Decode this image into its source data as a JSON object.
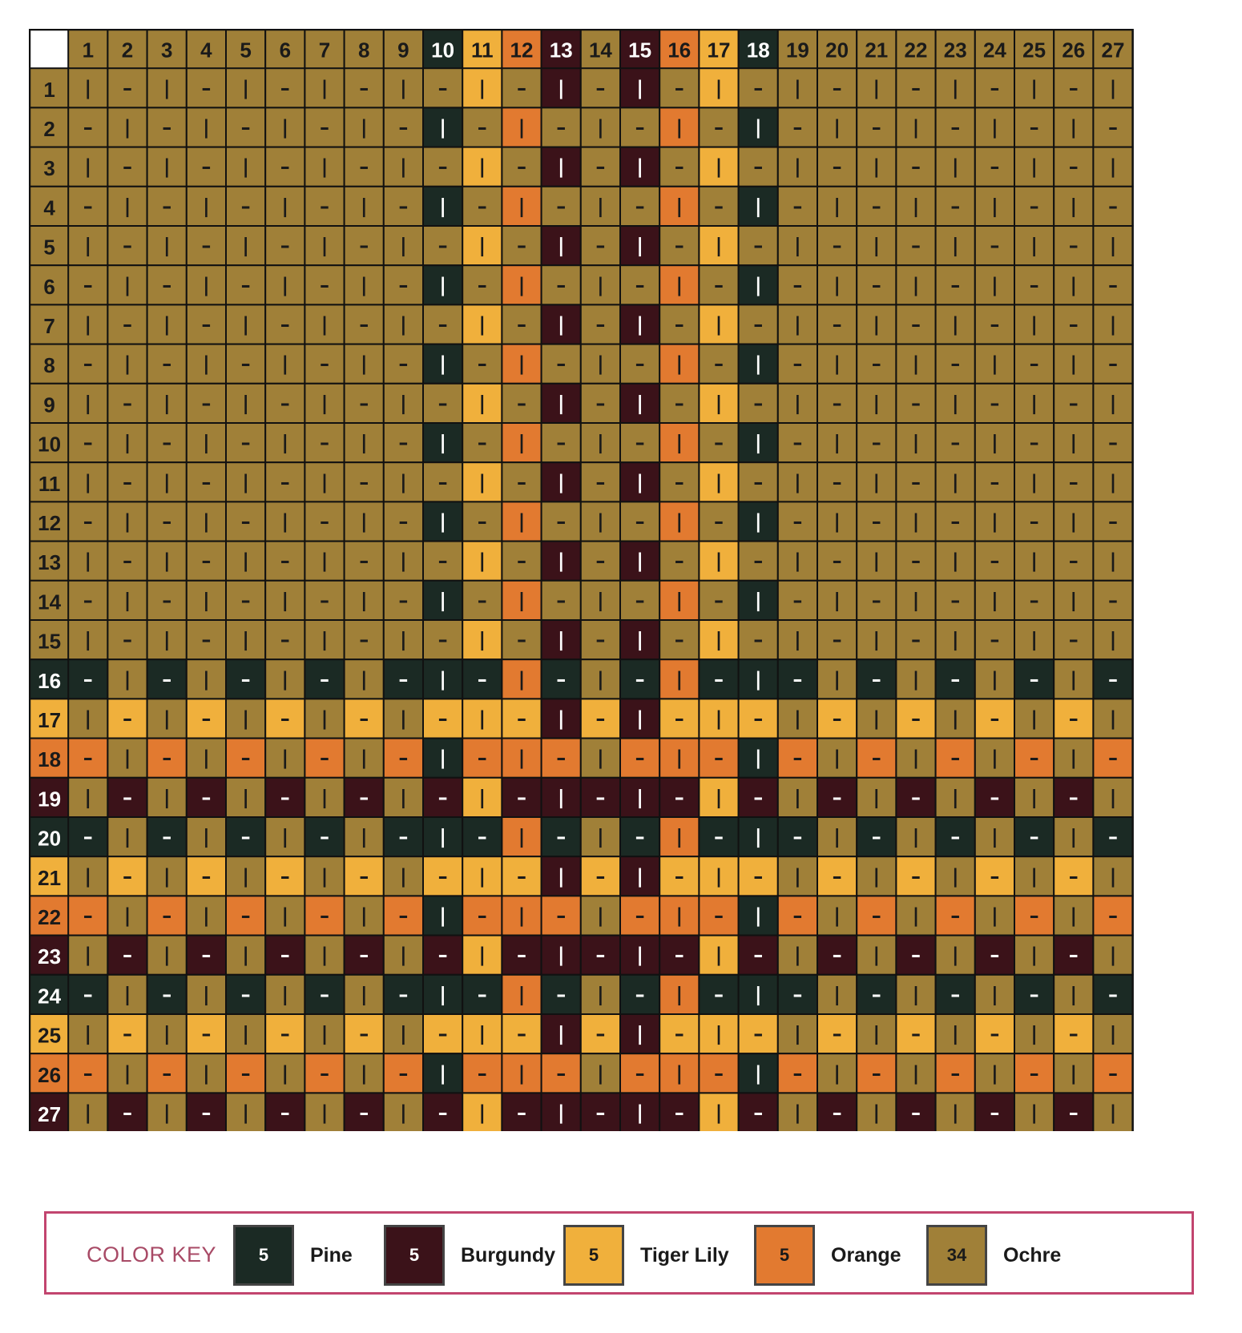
{
  "chart_data": {
    "type": "table",
    "columns": [
      "1",
      "2",
      "3",
      "4",
      "5",
      "6",
      "7",
      "8",
      "9",
      "10",
      "11",
      "12",
      "13",
      "14",
      "15",
      "16",
      "17",
      "18",
      "19",
      "20",
      "21",
      "22",
      "23",
      "24",
      "25",
      "26",
      "27"
    ],
    "rows": [
      "1",
      "2",
      "3",
      "4",
      "5",
      "6",
      "7",
      "8",
      "9",
      "10",
      "11",
      "12",
      "13",
      "14",
      "15",
      "16",
      "17",
      "18",
      "19",
      "20",
      "21",
      "22",
      "23",
      "24",
      "25",
      "26",
      "27"
    ],
    "warp_colors": [
      "Ochre",
      "Ochre",
      "Ochre",
      "Ochre",
      "Ochre",
      "Ochre",
      "Ochre",
      "Ochre",
      "Ochre",
      "Pine",
      "Tiger Lily",
      "Orange",
      "Burgundy",
      "Ochre",
      "Burgundy",
      "Orange",
      "Tiger Lily",
      "Pine",
      "Ochre",
      "Ochre",
      "Ochre",
      "Ochre",
      "Ochre",
      "Ochre",
      "Ochre",
      "Ochre",
      "Ochre"
    ],
    "weft_colors": [
      "Ochre",
      "Ochre",
      "Ochre",
      "Ochre",
      "Ochre",
      "Ochre",
      "Ochre",
      "Ochre",
      "Ochre",
      "Ochre",
      "Ochre",
      "Ochre",
      "Ochre",
      "Ochre",
      "Ochre",
      "Pine",
      "Tiger Lily",
      "Orange",
      "Burgundy",
      "Pine",
      "Tiger Lily",
      "Orange",
      "Burgundy",
      "Pine",
      "Tiger Lily",
      "Orange",
      "Burgundy"
    ],
    "marks": {
      "vertical": "|",
      "horizontal": "–"
    },
    "mark_rule": "vertical when (row + column) is even, horizontal when odd; cell color follows the column for vertical marks and the row for horizontal marks"
  },
  "legend": {
    "title": "COLOR KEY",
    "items": [
      {
        "name": "Pine",
        "count": "5",
        "color": "#1b2a24",
        "text_color": "#ffffff"
      },
      {
        "name": "Burgundy",
        "count": "5",
        "color": "#3b1219",
        "text_color": "#ffffff"
      },
      {
        "name": "Tiger Lily",
        "count": "5",
        "color": "#f0b03c",
        "text_color": "#1a1a1a"
      },
      {
        "name": "Orange",
        "count": "5",
        "color": "#e27a30",
        "text_color": "#1a1a1a"
      },
      {
        "name": "Ochre",
        "count": "34",
        "color": "#a08038",
        "text_color": "#1a1a1a"
      }
    ]
  }
}
